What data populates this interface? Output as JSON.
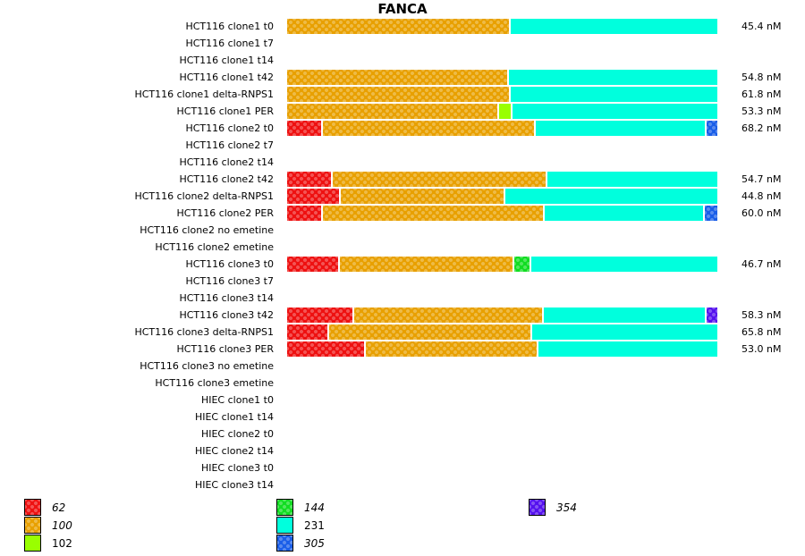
{
  "chart_data": {
    "type": "bar",
    "orientation": "horizontal-stacked",
    "title": "FANCA",
    "xlabel": "",
    "ylabel": "",
    "x_unit": "percent of bar",
    "legend_position": "bottom",
    "categories": [
      "HCT116 clone1 t0",
      "HCT116 clone1 t7",
      "HCT116 clone1 t14",
      "HCT116 clone1 t42",
      "HCT116 clone1 delta-RNPS1",
      "HCT116 clone1 PER",
      "HCT116 clone2 t0",
      "HCT116 clone2 t7",
      "HCT116 clone2 t14",
      "HCT116 clone2 t42",
      "HCT116 clone2 delta-RNPS1",
      "HCT116 clone2 PER",
      "HCT116 clone2 no emetine",
      "HCT116 clone2 emetine",
      "HCT116 clone3 t0",
      "HCT116 clone3 t7",
      "HCT116 clone3 t14",
      "HCT116 clone3 t42",
      "HCT116 clone3 delta-RNPS1",
      "HCT116 clone3 PER",
      "HCT116 clone3 no emetine",
      "HCT116 clone3 emetine",
      "HIEC clone1 t0",
      "HIEC clone1 t14",
      "HIEC clone2 t0",
      "HIEC clone2 t14",
      "HIEC clone3 t0",
      "HIEC clone3 t14"
    ],
    "value_labels": [
      "45.4 nM",
      "",
      "",
      "54.8 nM",
      "61.8 nM",
      "53.3 nM",
      "68.2 nM",
      "",
      "",
      "54.7 nM",
      "44.8 nM",
      "60.0 nM",
      "",
      "",
      "46.7 nM",
      "",
      "",
      "58.3 nM",
      "65.8 nM",
      "53.0 nM",
      "",
      "",
      "",
      "",
      "",
      "",
      "",
      ""
    ],
    "series": [
      {
        "name": "62",
        "italic": true,
        "color": "#ee1111",
        "pattern": true,
        "values": [
          0,
          0,
          0,
          0,
          0,
          0,
          8.3,
          0,
          0,
          10.6,
          12.5,
          8.3,
          0,
          0,
          12.3,
          0,
          0,
          15.6,
          9.8,
          18.3,
          0,
          0,
          0,
          0,
          0,
          0,
          0,
          0
        ]
      },
      {
        "name": "100",
        "italic": true,
        "color": "#e8a000",
        "pattern": true,
        "values": [
          51.9,
          0,
          0,
          51.5,
          51.9,
          49.2,
          49.6,
          0,
          0,
          50.0,
          38.3,
          51.5,
          0,
          0,
          40.6,
          0,
          0,
          44.0,
          47.1,
          40.2,
          0,
          0,
          0,
          0,
          0,
          0,
          0,
          0
        ]
      },
      {
        "name": "102",
        "italic": false,
        "color": "#99ff00",
        "pattern": false,
        "values": [
          0,
          0,
          0,
          0,
          0,
          3.1,
          0,
          0,
          0,
          0,
          0,
          0,
          0,
          0,
          0,
          0,
          0,
          0,
          0,
          0,
          0,
          0,
          0,
          0,
          0,
          0,
          0,
          0
        ]
      },
      {
        "name": "144",
        "italic": true,
        "color": "#11dd22",
        "pattern": true,
        "values": [
          0,
          0,
          0,
          0,
          0,
          0,
          0,
          0,
          0,
          0,
          0,
          0,
          0,
          0,
          3.8,
          0,
          0,
          0,
          0,
          0,
          0,
          0,
          0,
          0,
          0,
          0,
          0,
          0
        ]
      },
      {
        "name": "231",
        "italic": false,
        "color": "#00ffdd",
        "pattern": false,
        "values": [
          48.1,
          0,
          0,
          48.5,
          48.1,
          47.7,
          39.6,
          0,
          0,
          39.4,
          49.2,
          37.3,
          0,
          0,
          43.3,
          0,
          0,
          37.9,
          43.1,
          41.5,
          0,
          0,
          0,
          0,
          0,
          0,
          0,
          0
        ]
      },
      {
        "name": "305",
        "italic": true,
        "color": "#1a5ee8",
        "pattern": true,
        "values": [
          0,
          0,
          0,
          0,
          0,
          0,
          2.5,
          0,
          0,
          0,
          0,
          2.9,
          0,
          0,
          0,
          0,
          0,
          0,
          0,
          0,
          0,
          0,
          0,
          0,
          0,
          0,
          0,
          0
        ]
      },
      {
        "name": "354",
        "italic": true,
        "color": "#5511ee",
        "pattern": true,
        "values": [
          0,
          0,
          0,
          0,
          0,
          0,
          0,
          0,
          0,
          0,
          0,
          0,
          0,
          0,
          0,
          0,
          0,
          2.5,
          0,
          0,
          0,
          0,
          0,
          0,
          0,
          0,
          0,
          0
        ]
      }
    ]
  }
}
